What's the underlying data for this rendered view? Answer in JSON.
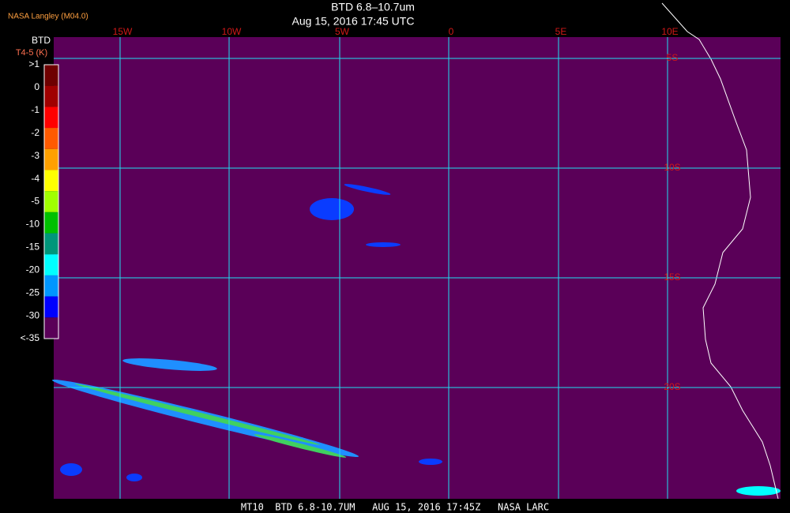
{
  "header": {
    "producer": "NASA Langley (M04.0)",
    "title": "BTD 6.8–10.7um",
    "subtitle": "Aug 15, 2016 17:45 UTC"
  },
  "legend": {
    "title": "BTD",
    "subtitle": "T4-5 (K)",
    "labels": [
      ">1",
      "0",
      "-1",
      "-2",
      "-3",
      "-4",
      "-5",
      "-10",
      "-15",
      "-20",
      "-25",
      "-30",
      "<-35"
    ],
    "colors": [
      "#6e0000",
      "#a00000",
      "#ff0000",
      "#ff5a00",
      "#ffa000",
      "#ffff00",
      "#a0ff00",
      "#00c000",
      "#00967a",
      "#00ffff",
      "#0096ff",
      "#0000ff",
      "#5a0058"
    ]
  },
  "map": {
    "longitudes": [
      "15W",
      "10W",
      "5W",
      "0",
      "5E",
      "10E"
    ],
    "latitudes": [
      "5S",
      "10S",
      "15S",
      "20S"
    ]
  },
  "footer": "MT10  BTD 6.8-10.7UM   AUG 15, 2016 17:45Z   NASA LARC"
}
